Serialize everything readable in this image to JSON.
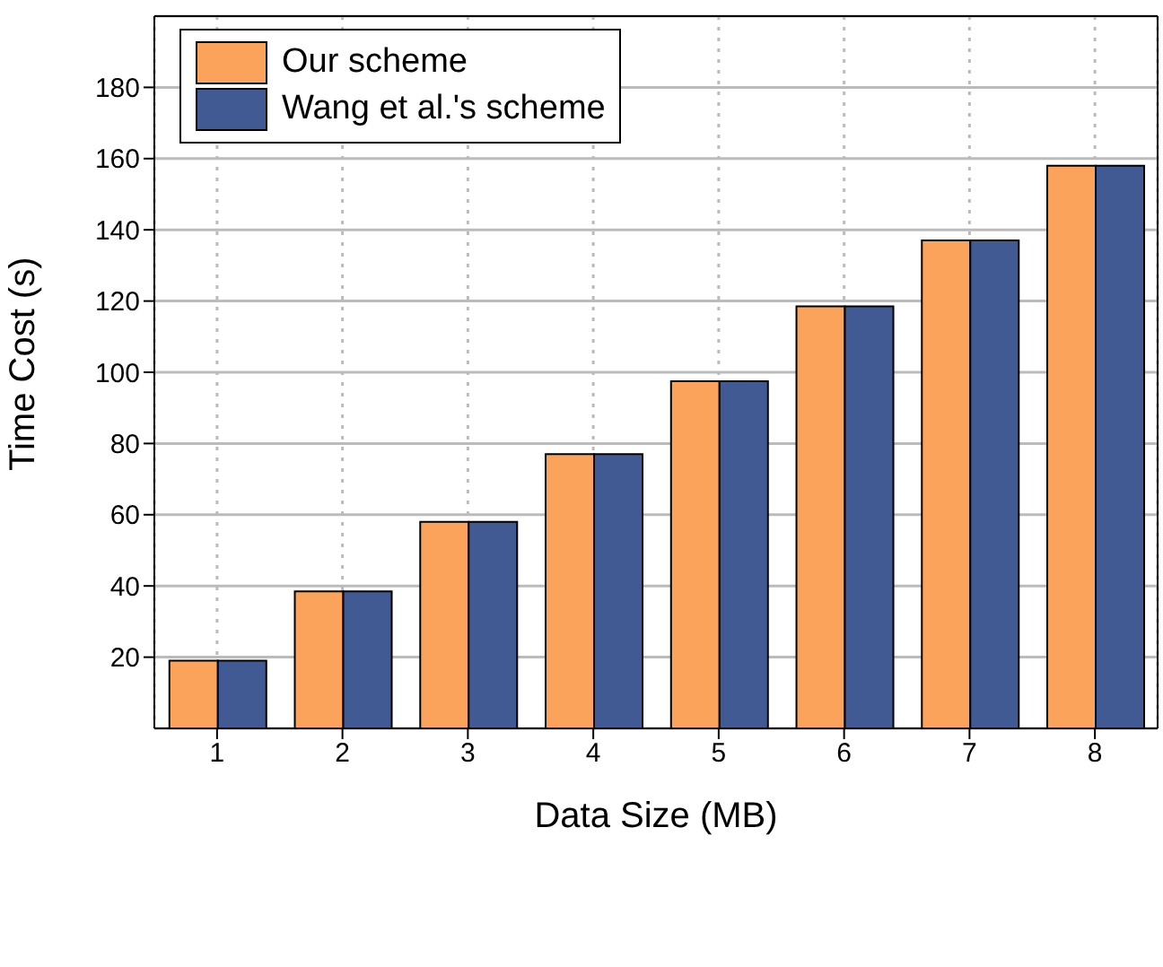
{
  "chart_data": {
    "type": "bar",
    "xlabel": "Data Size (MB)",
    "ylabel": "Time Cost (s)",
    "categories": [
      "1",
      "2",
      "3",
      "4",
      "5",
      "6",
      "7",
      "8"
    ],
    "series": [
      {
        "name": "Our scheme",
        "color": "#fba35a",
        "values": [
          19,
          38.5,
          58,
          77,
          97.5,
          118.5,
          137,
          158
        ]
      },
      {
        "name": "Wang et al.'s scheme",
        "color": "#415a93",
        "values": [
          19,
          38.5,
          58,
          77,
          97.5,
          118.5,
          137,
          158
        ]
      }
    ],
    "ylim": [
      0,
      200
    ],
    "yticks": [
      20,
      40,
      60,
      80,
      100,
      120,
      140,
      160,
      180
    ],
    "grid": true,
    "legend": "top left"
  }
}
